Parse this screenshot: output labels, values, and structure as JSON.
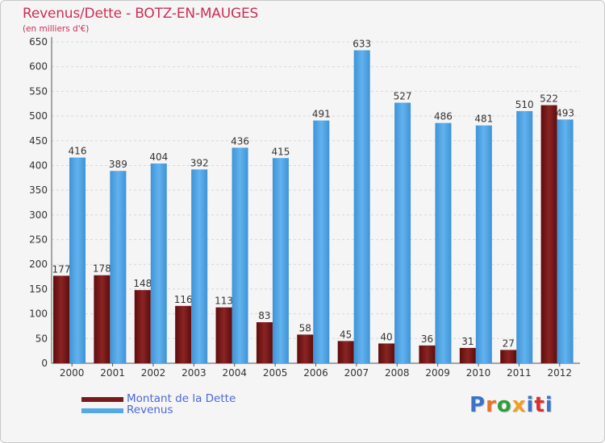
{
  "title": "Revenus/Dette - BOTZ-EN-MAUGES",
  "subtitle": "(en milliers d'€)",
  "legend": {
    "dette_label": "Montant de la Dette",
    "revenus_label": "Revenus"
  },
  "logo": {
    "text": "Proxiti",
    "letters": [
      "P",
      "r",
      "o",
      "x",
      "i",
      "t",
      "i"
    ],
    "colors": [
      "#3a74c8",
      "#e8732a",
      "#2f9e3a",
      "#f0a020",
      "#3a74c8",
      "#d83030",
      "#3a74c8"
    ]
  },
  "colors": {
    "dette": "#7a1a1a",
    "revenus": "#55a8e6"
  },
  "chart_data": {
    "type": "bar",
    "title": "Revenus/Dette - BOTZ-EN-MAUGES",
    "subtitle": "(en milliers d'€)",
    "categories": [
      "2000",
      "2001",
      "2002",
      "2003",
      "2004",
      "2005",
      "2006",
      "2007",
      "2008",
      "2009",
      "2010",
      "2011",
      "2012"
    ],
    "series": [
      {
        "name": "Montant de la Dette",
        "values": [
          177,
          178,
          148,
          116,
          113,
          83,
          58,
          45,
          40,
          36,
          31,
          27,
          522
        ]
      },
      {
        "name": "Revenus",
        "values": [
          416,
          389,
          404,
          392,
          436,
          415,
          491,
          633,
          527,
          486,
          481,
          510,
          493
        ]
      }
    ],
    "ylim": [
      0,
      650
    ],
    "yticks": [
      0,
      50,
      100,
      150,
      200,
      250,
      300,
      350,
      400,
      450,
      500,
      550,
      600,
      650
    ],
    "grid": true,
    "legend_position": "bottom-left"
  }
}
